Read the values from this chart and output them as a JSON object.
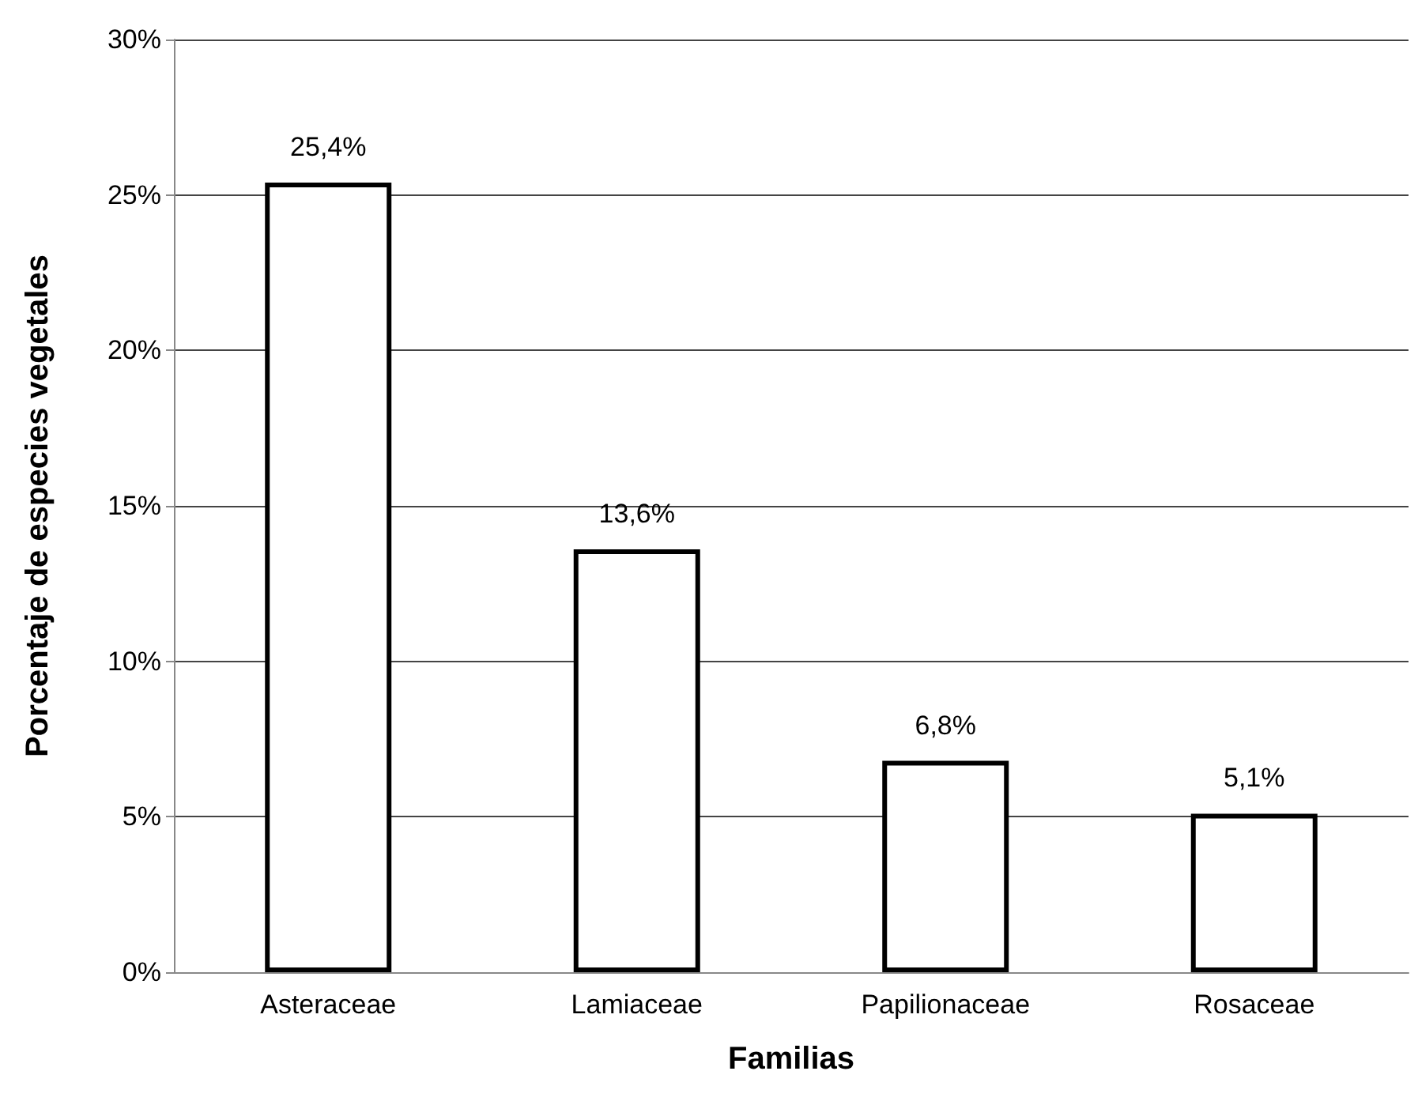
{
  "chart_data": {
    "type": "bar",
    "xlabel": "Familias",
    "ylabel": "Porcentaje de especies vegetales",
    "categories": [
      "Asteraceae",
      "Lamiaceae",
      "Papilionaceae",
      "Rosaceae"
    ],
    "values": [
      25.4,
      13.6,
      6.8,
      5.1
    ],
    "value_labels": [
      "25,4%",
      "13,6%",
      "6,8%",
      "5,1%"
    ],
    "color": "#ffffff",
    "ylim": [
      0,
      30
    ],
    "yticks": [
      {
        "value": 0,
        "label": "0%"
      },
      {
        "value": 5,
        "label": "5%"
      },
      {
        "value": 10,
        "label": "10%"
      },
      {
        "value": 15,
        "label": "15%"
      },
      {
        "value": 20,
        "label": "20%"
      },
      {
        "value": 25,
        "label": "25%"
      },
      {
        "value": 30,
        "label": "30%"
      }
    ],
    "grid": "y"
  }
}
